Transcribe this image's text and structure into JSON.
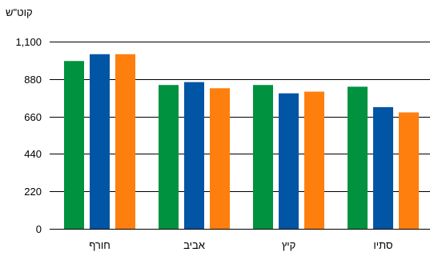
{
  "chart_data": {
    "type": "bar",
    "ylabel": "קוט\"ש",
    "categories": [
      "חורף",
      "אביב",
      "קיץ",
      "סתיו"
    ],
    "series": [
      {
        "color": "#00923f",
        "values": [
          986,
          845,
          845,
          835
        ]
      },
      {
        "color": "#0055a5",
        "values": [
          1026,
          862,
          796,
          715
        ]
      },
      {
        "color": "#ff7f0e",
        "values": [
          1026,
          826,
          806,
          684
        ]
      }
    ],
    "ylim": [
      0,
      1100
    ],
    "yticks": [
      0,
      220,
      440,
      660,
      880,
      1100
    ],
    "ytick_labels": [
      "0",
      "220",
      "440",
      "660",
      "880",
      "1,100"
    ],
    "grid": true,
    "legend": "none"
  }
}
